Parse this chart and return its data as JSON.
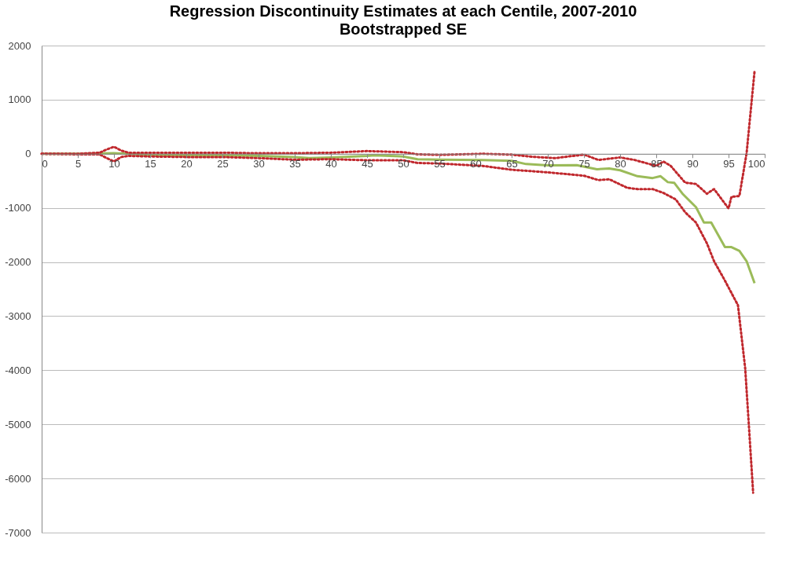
{
  "chart_data": {
    "type": "line",
    "title": "Regression Discontinuity Estimates at each Centile, 2007-2010",
    "subtitle": "Bootstrapped SE",
    "xlim": [
      0,
      100
    ],
    "xticks": [
      0,
      5,
      10,
      15,
      20,
      25,
      30,
      35,
      40,
      45,
      50,
      55,
      60,
      65,
      70,
      75,
      80,
      85,
      90,
      95,
      100
    ],
    "ylim": [
      -7000,
      2000
    ],
    "yticks": [
      -7000,
      -6000,
      -5000,
      -4000,
      -3000,
      -2000,
      -1000,
      0,
      1000,
      2000
    ],
    "grid": "y",
    "series": [
      {
        "color": "#9bbb59",
        "line_style": "solid",
        "x": [
          0,
          5,
          10,
          15,
          20,
          25,
          30,
          35,
          37,
          40,
          45,
          46,
          50,
          52,
          55,
          61,
          65,
          67,
          70,
          74,
          76.8,
          78.5,
          80,
          82.4,
          84.5,
          85.6,
          86.6,
          87.5,
          88.7,
          90.5,
          91.6,
          92.6,
          94.5,
          95.4,
          96.5,
          97.5,
          98.6
        ],
        "values": [
          0,
          0,
          10,
          -20,
          -25,
          -30,
          -40,
          -60,
          -80,
          -70,
          -40,
          -30,
          -50,
          -100,
          -110,
          -114,
          -129,
          -190,
          -214,
          -210,
          -286,
          -271,
          -305,
          -414,
          -448,
          -414,
          -524,
          -538,
          -748,
          -986,
          -1271,
          -1271,
          -1724,
          -1724,
          -1795,
          -1986,
          -2390
        ]
      },
      {
        "color": "#c0282d",
        "line_style": "dotted",
        "x": [
          0,
          5,
          8,
          9,
          10,
          11,
          12,
          15,
          20,
          25,
          30,
          35,
          40,
          45,
          50,
          52,
          55,
          61,
          65,
          68,
          71,
          75,
          77,
          80,
          82,
          85,
          86,
          87,
          89,
          90.5,
          92,
          93,
          95,
          95.4,
          96.5,
          97.5,
          98.6
        ],
        "values": [
          0,
          0,
          20,
          80,
          130,
          60,
          20,
          20,
          20,
          20,
          10,
          10,
          20,
          50,
          30,
          -10,
          -20,
          0,
          -15,
          -57,
          -80,
          -15,
          -114,
          -67,
          -114,
          -224,
          -143,
          -224,
          -533,
          -557,
          -738,
          -652,
          -1010,
          -795,
          -781,
          14,
          1530
        ]
      },
      {
        "color": "#c0282d",
        "line_style": "dotted",
        "x": [
          0,
          5,
          8,
          9,
          10,
          11,
          12,
          15,
          20,
          25,
          30,
          35,
          40,
          45,
          50,
          52,
          55,
          61,
          65,
          70,
          75,
          77,
          78.5,
          81,
          82.4,
          84.5,
          86,
          87.7,
          89,
          90.5,
          92,
          93,
          94.4,
          96.3,
          97.3,
          97.8,
          98.4
        ],
        "values": [
          0,
          -10,
          -10,
          -80,
          -140,
          -60,
          -40,
          -50,
          -60,
          -60,
          -80,
          -110,
          -100,
          -120,
          -120,
          -170,
          -180,
          -224,
          -295,
          -343,
          -405,
          -486,
          -471,
          -629,
          -652,
          -652,
          -724,
          -843,
          -1081,
          -1271,
          -1652,
          -1986,
          -2319,
          -2798,
          -3963,
          -5000,
          -6264
        ]
      }
    ]
  }
}
